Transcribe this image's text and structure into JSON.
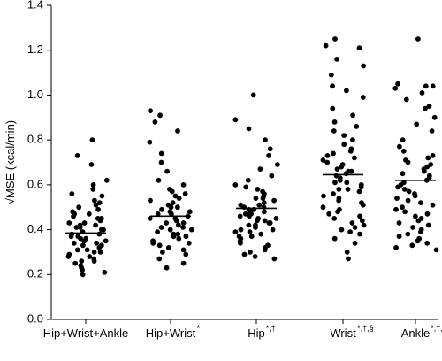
{
  "chart_data": {
    "type": "scatter",
    "ylabel": "√MSE (kcal/min)",
    "xlabel": "",
    "ylim": [
      0.0,
      1.4
    ],
    "yticks": [
      "0.0",
      "0.2",
      "0.4",
      "0.6",
      "0.8",
      "1.0",
      "1.2",
      "1.4"
    ],
    "grid": false,
    "categories": [
      {
        "label": "Hip+Wrist+Ankle",
        "sup": ""
      },
      {
        "label": "Hip+Wrist",
        "sup": "*"
      },
      {
        "label": "Hip",
        "sup": "*,†"
      },
      {
        "label": "Wrist",
        "sup": "*,†,§"
      },
      {
        "label": "Ankle",
        "sup": "*,†,§"
      }
    ],
    "means": [
      0.385,
      0.46,
      0.495,
      0.645,
      0.62
    ],
    "series": [
      {
        "values": [
          0.8,
          0.73,
          0.69,
          0.62,
          0.6,
          0.58,
          0.56,
          0.55,
          0.53,
          0.52,
          0.51,
          0.5,
          0.49,
          0.48,
          0.47,
          0.47,
          0.46,
          0.45,
          0.45,
          0.44,
          0.43,
          0.43,
          0.42,
          0.42,
          0.41,
          0.41,
          0.4,
          0.4,
          0.39,
          0.39,
          0.38,
          0.38,
          0.37,
          0.37,
          0.36,
          0.36,
          0.35,
          0.35,
          0.34,
          0.34,
          0.33,
          0.33,
          0.32,
          0.31,
          0.31,
          0.3,
          0.3,
          0.29,
          0.28,
          0.28,
          0.27,
          0.26,
          0.26,
          0.25,
          0.24,
          0.23,
          0.22,
          0.21,
          0.2
        ]
      },
      {
        "values": [
          0.93,
          0.91,
          0.88,
          0.84,
          0.79,
          0.74,
          0.7,
          0.66,
          0.62,
          0.6,
          0.58,
          0.57,
          0.56,
          0.55,
          0.54,
          0.53,
          0.52,
          0.51,
          0.5,
          0.5,
          0.49,
          0.48,
          0.48,
          0.47,
          0.47,
          0.46,
          0.45,
          0.45,
          0.44,
          0.44,
          0.43,
          0.43,
          0.42,
          0.41,
          0.41,
          0.4,
          0.4,
          0.39,
          0.38,
          0.38,
          0.37,
          0.37,
          0.36,
          0.35,
          0.34,
          0.34,
          0.33,
          0.32,
          0.31,
          0.3,
          0.29,
          0.27,
          0.25,
          0.23
        ]
      },
      {
        "values": [
          1.0,
          0.89,
          0.85,
          0.8,
          0.76,
          0.73,
          0.69,
          0.67,
          0.64,
          0.62,
          0.6,
          0.59,
          0.58,
          0.57,
          0.56,
          0.55,
          0.54,
          0.54,
          0.53,
          0.52,
          0.51,
          0.51,
          0.5,
          0.5,
          0.49,
          0.49,
          0.48,
          0.48,
          0.47,
          0.47,
          0.46,
          0.46,
          0.45,
          0.45,
          0.44,
          0.44,
          0.43,
          0.43,
          0.42,
          0.42,
          0.41,
          0.4,
          0.4,
          0.39,
          0.39,
          0.38,
          0.37,
          0.37,
          0.36,
          0.35,
          0.34,
          0.33,
          0.32,
          0.31,
          0.3,
          0.29,
          0.28,
          0.27
        ]
      },
      {
        "values": [
          1.25,
          1.22,
          1.21,
          1.16,
          1.13,
          1.09,
          1.04,
          1.02,
          0.99,
          0.94,
          0.91,
          0.88,
          0.86,
          0.84,
          0.82,
          0.8,
          0.78,
          0.76,
          0.75,
          0.74,
          0.73,
          0.72,
          0.71,
          0.7,
          0.69,
          0.68,
          0.67,
          0.66,
          0.66,
          0.65,
          0.64,
          0.63,
          0.62,
          0.61,
          0.61,
          0.6,
          0.59,
          0.58,
          0.58,
          0.57,
          0.56,
          0.55,
          0.54,
          0.53,
          0.52,
          0.51,
          0.5,
          0.49,
          0.48,
          0.47,
          0.46,
          0.45,
          0.44,
          0.43,
          0.42,
          0.41,
          0.4,
          0.39,
          0.38,
          0.36,
          0.34,
          0.3,
          0.27
        ]
      },
      {
        "values": [
          1.25,
          1.05,
          1.04,
          1.04,
          1.03,
          1.01,
          0.98,
          0.95,
          0.94,
          0.9,
          0.87,
          0.84,
          0.8,
          0.77,
          0.75,
          0.73,
          0.72,
          0.71,
          0.7,
          0.69,
          0.68,
          0.67,
          0.66,
          0.65,
          0.64,
          0.63,
          0.62,
          0.61,
          0.6,
          0.59,
          0.58,
          0.57,
          0.56,
          0.55,
          0.54,
          0.53,
          0.52,
          0.51,
          0.5,
          0.49,
          0.48,
          0.47,
          0.46,
          0.45,
          0.44,
          0.43,
          0.42,
          0.41,
          0.4,
          0.39,
          0.38,
          0.37,
          0.36,
          0.35,
          0.34,
          0.33,
          0.32,
          0.31
        ]
      }
    ]
  }
}
